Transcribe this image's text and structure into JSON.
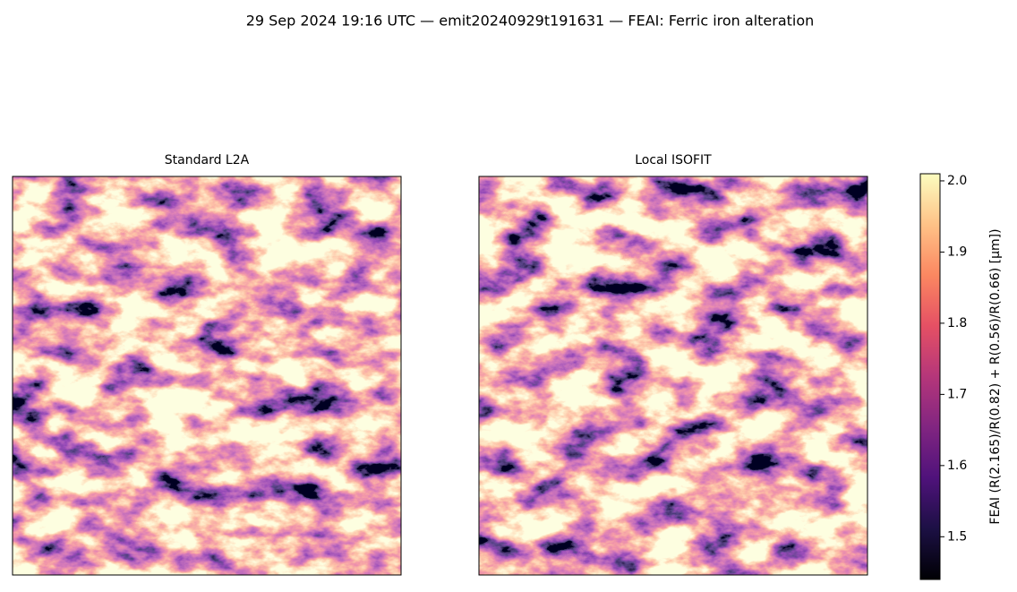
{
  "chart_data": {
    "type": "image",
    "title": "29 Sep 2024 19:16 UTC — emit20240929t191631 — FEAI: Ferric iron alteration",
    "panels": [
      {
        "title": "Standard L2A"
      },
      {
        "title": "Local ISOFIT"
      }
    ],
    "colorbar": {
      "label": "FEAI  (R(2.165)/R(0.82) + R(0.56)/R(0.66)  [µm])",
      "colormap": "magma",
      "lim": [
        1.44,
        2.01
      ],
      "ticks": [
        1.5,
        1.6,
        1.7,
        1.8,
        1.9,
        {
          "value": 2,
          "label": "2.0"
        }
      ]
    }
  }
}
